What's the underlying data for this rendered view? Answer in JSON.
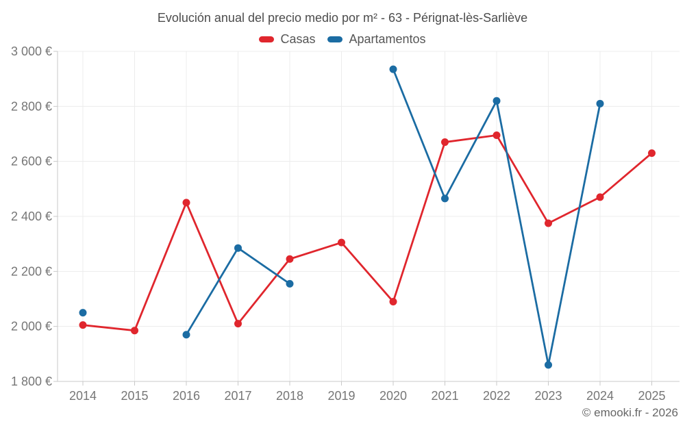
{
  "chart_data": {
    "type": "line",
    "title": "Evolución anual del precio medio por m² - 63 - Pérignat-lès-Sarliève",
    "footer": "© emooki.fr - 2026",
    "x": [
      2014,
      2015,
      2016,
      2017,
      2018,
      2019,
      2020,
      2021,
      2022,
      2023,
      2024,
      2025
    ],
    "series": [
      {
        "name": "Casas",
        "color": "#e0262d",
        "values": [
          2005,
          1985,
          2450,
          2010,
          2245,
          2305,
          2090,
          2670,
          2695,
          2375,
          2470,
          2630
        ]
      },
      {
        "name": "Apartamentos",
        "color": "#1b6ca3",
        "values": [
          2050,
          null,
          1970,
          2285,
          2155,
          null,
          2935,
          2465,
          2820,
          1860,
          2810,
          null
        ]
      }
    ],
    "xlabel": "",
    "ylabel": "",
    "ylim": [
      1800,
      3000
    ],
    "yticks": [
      1800,
      2000,
      2200,
      2400,
      2600,
      2800,
      3000
    ],
    "ytick_labels": [
      "1 800 €",
      "2 000 €",
      "2 200 €",
      "2 400 €",
      "2 600 €",
      "2 800 €",
      "3 000 €"
    ],
    "grid": true,
    "legend_position": "top"
  }
}
